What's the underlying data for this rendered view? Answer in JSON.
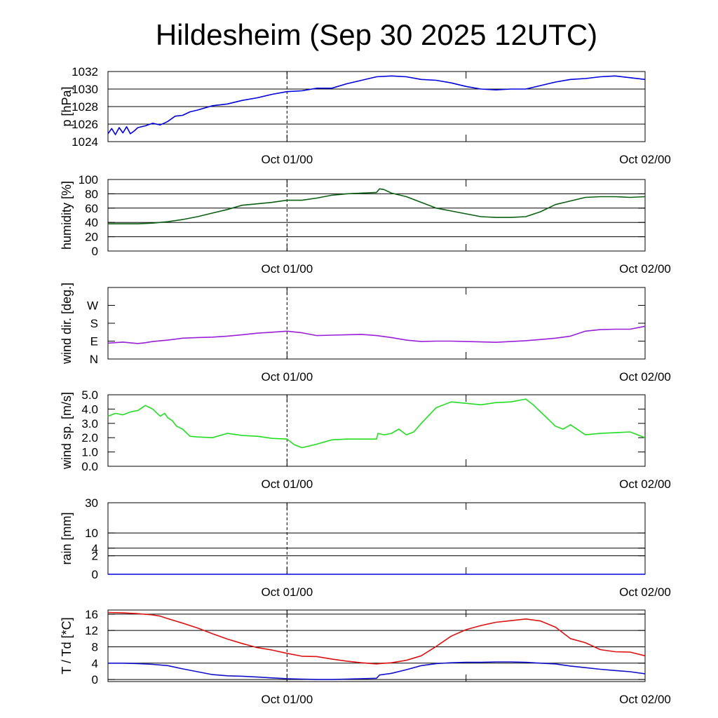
{
  "title": "Hildesheim (Sep 30 2025 12UTC)",
  "x_tick_labels": [
    "Oct 01/00",
    "Oct 02/00"
  ],
  "chart_data": [
    {
      "type": "line",
      "key": "pressure",
      "ylabel": "p [hPa]",
      "ylim": [
        1024,
        1032
      ],
      "yticks": [
        1024,
        1026,
        1028,
        1030,
        1032
      ],
      "yticklabels": [
        "1024",
        "1026",
        "1028",
        "1030",
        "1032"
      ],
      "xlim": [
        0,
        36
      ],
      "x_tick_hours": [
        12,
        24,
        36
      ],
      "grid": true,
      "color": "#0000dd",
      "series": [
        {
          "x": [
            0,
            0.25,
            0.5,
            0.75,
            1,
            1.25,
            1.5,
            1.75,
            2,
            2.5,
            3,
            3.5,
            4,
            4.5,
            5,
            5.5,
            6,
            7,
            8,
            9,
            10,
            11,
            12,
            13,
            14,
            15,
            16,
            17,
            18,
            19,
            20,
            21,
            22,
            23,
            24,
            25,
            26,
            27,
            28,
            29,
            30,
            31,
            32,
            33,
            34,
            35,
            36
          ],
          "values": [
            1024.9,
            1025.5,
            1024.8,
            1025.6,
            1025.0,
            1025.7,
            1024.9,
            1025.2,
            1025.6,
            1025.8,
            1026.1,
            1025.9,
            1026.3,
            1026.9,
            1027.0,
            1027.4,
            1027.6,
            1028.1,
            1028.3,
            1028.7,
            1029.0,
            1029.4,
            1029.7,
            1029.8,
            1030.1,
            1030.1,
            1030.6,
            1031.0,
            1031.4,
            1031.5,
            1031.4,
            1031.1,
            1031.0,
            1030.7,
            1030.3,
            1030.0,
            1029.9,
            1030.0,
            1030.0,
            1030.4,
            1030.8,
            1031.1,
            1031.2,
            1031.4,
            1031.5,
            1031.3,
            1031.1
          ]
        }
      ]
    },
    {
      "type": "line",
      "key": "humidity",
      "ylabel": "humidity [%]",
      "ylim": [
        0,
        100
      ],
      "yticks": [
        0,
        20,
        40,
        60,
        80,
        100
      ],
      "yticklabels": [
        "0",
        "20",
        "40",
        "60",
        "80",
        "100"
      ],
      "xlim": [
        0,
        36
      ],
      "x_tick_hours": [
        12,
        24,
        36
      ],
      "grid": true,
      "color": "#0a6010",
      "series": [
        {
          "x": [
            0,
            1,
            2,
            3,
            4,
            5,
            6,
            7,
            8,
            9,
            10,
            11,
            12,
            13,
            14,
            15,
            16,
            17,
            18,
            18.2,
            18.5,
            19,
            20,
            21,
            22,
            23,
            24,
            25,
            26,
            27,
            28,
            29,
            30,
            31,
            32,
            33,
            34,
            35,
            36
          ],
          "values": [
            38,
            38,
            38,
            39,
            41,
            44,
            48,
            53,
            58,
            64,
            66,
            68,
            71,
            71,
            74,
            78,
            80,
            81,
            82,
            87,
            86,
            81,
            76,
            68,
            60,
            56,
            52,
            48,
            47,
            47,
            48,
            55,
            65,
            70,
            75,
            76,
            76,
            75,
            76
          ]
        }
      ]
    },
    {
      "type": "line",
      "key": "wind_direction",
      "ylabel": "wind dir. [deg.]",
      "ylim": [
        0,
        360
      ],
      "yticks": [
        0,
        90,
        180,
        270
      ],
      "yticklabels": [
        "N",
        "E",
        "S",
        "W"
      ],
      "xlim": [
        0,
        36
      ],
      "x_tick_hours": [
        12,
        24,
        36
      ],
      "grid": false,
      "color": "#9a1fd8",
      "series": [
        {
          "x": [
            0,
            1,
            2,
            2.5,
            3,
            4,
            5,
            6,
            7,
            8,
            9,
            10,
            11,
            12,
            13,
            14,
            15,
            16,
            17,
            18,
            19,
            20,
            21,
            22,
            23,
            24,
            25,
            26,
            27,
            28,
            29,
            30,
            31,
            32,
            33,
            34,
            35,
            36
          ],
          "values": [
            80,
            85,
            78,
            82,
            88,
            95,
            105,
            108,
            110,
            115,
            122,
            130,
            135,
            140,
            132,
            118,
            120,
            122,
            124,
            118,
            108,
            95,
            88,
            90,
            90,
            88,
            86,
            84,
            88,
            92,
            98,
            105,
            115,
            140,
            148,
            150,
            150,
            165
          ]
        }
      ]
    },
    {
      "type": "line",
      "key": "wind_speed",
      "ylabel": "wind sp. [m/s]",
      "ylim": [
        0,
        5
      ],
      "yticks": [
        0,
        1,
        2,
        3,
        4,
        5
      ],
      "yticklabels": [
        "0.0",
        "1.0",
        "2.0",
        "3.0",
        "4.0",
        "5.0"
      ],
      "xlim": [
        0,
        36
      ],
      "x_tick_hours": [
        12,
        24,
        36
      ],
      "grid": false,
      "color": "#22dd22",
      "series": [
        {
          "x": [
            0,
            0.5,
            1,
            1.5,
            2,
            2.5,
            3,
            3.5,
            3.8,
            4,
            4.3,
            4.6,
            5,
            5.5,
            6,
            7,
            8,
            9,
            10,
            11,
            12,
            12.5,
            13,
            14,
            15,
            16,
            17,
            18,
            18.1,
            18.5,
            19,
            19.5,
            20,
            20.5,
            21,
            22,
            23,
            24,
            25,
            26,
            27,
            28,
            28.5,
            29,
            29.5,
            30,
            30.5,
            31,
            32,
            33,
            34,
            35,
            36
          ],
          "values": [
            3.5,
            3.7,
            3.6,
            3.8,
            3.9,
            4.25,
            4.0,
            3.5,
            3.7,
            3.4,
            3.2,
            2.8,
            2.6,
            2.1,
            2.05,
            2.0,
            2.3,
            2.15,
            2.1,
            1.95,
            1.9,
            1.5,
            1.3,
            1.55,
            1.85,
            1.9,
            1.9,
            1.9,
            2.3,
            2.2,
            2.3,
            2.6,
            2.2,
            2.4,
            3.0,
            4.1,
            4.5,
            4.4,
            4.3,
            4.45,
            4.5,
            4.7,
            4.3,
            3.8,
            3.3,
            2.8,
            2.6,
            2.9,
            2.2,
            2.3,
            2.35,
            2.4,
            2.0
          ]
        }
      ]
    },
    {
      "type": "line",
      "key": "rain",
      "ylabel": "rain [mm]",
      "ylim": [
        0,
        30
      ],
      "yticks": [
        0,
        2,
        4,
        10,
        30
      ],
      "yticklabels": [
        "0",
        "2",
        "4",
        "10",
        "30"
      ],
      "yscale": "sqrt",
      "xlim": [
        0,
        36
      ],
      "x_tick_hours": [
        12,
        24,
        36
      ],
      "grid": true,
      "color": "#0000dd",
      "series": [
        {
          "x": [
            0,
            36
          ],
          "values": [
            0,
            0
          ]
        }
      ]
    },
    {
      "type": "line",
      "key": "temperature",
      "ylabel": "T / Td [*C]",
      "ylim": [
        -0.5,
        17
      ],
      "yticks": [
        0,
        4,
        8,
        12,
        16
      ],
      "yticklabels": [
        "0",
        "4",
        "8",
        "12",
        "16"
      ],
      "xlim": [
        0,
        36
      ],
      "x_tick_hours": [
        12,
        24,
        36
      ],
      "grid": true,
      "series": [
        {
          "name": "T",
          "color": "#dd1111",
          "x": [
            0,
            1,
            2,
            3,
            3.5,
            4,
            5,
            6,
            7,
            8,
            9,
            10,
            11,
            12,
            13,
            14,
            15,
            16,
            17,
            18,
            18.2,
            19,
            20,
            21,
            22,
            23,
            24,
            25,
            26,
            27,
            28,
            29,
            30,
            31,
            32,
            33,
            34,
            35,
            36
          ],
          "values": [
            16.4,
            16.3,
            16.1,
            15.8,
            15.5,
            14.9,
            13.8,
            12.6,
            11.2,
            9.9,
            8.8,
            7.8,
            7.2,
            6.4,
            5.7,
            5.6,
            5.0,
            4.5,
            4.1,
            3.8,
            3.9,
            4.1,
            4.7,
            5.8,
            8.1,
            10.6,
            12.2,
            13.2,
            14.0,
            14.4,
            14.8,
            14.3,
            12.8,
            10.0,
            9.0,
            7.3,
            6.8,
            6.7,
            5.8
          ]
        },
        {
          "name": "Td",
          "color": "#1111cc",
          "x": [
            0,
            1,
            2,
            3,
            4,
            5,
            6,
            7,
            8,
            9,
            10,
            11,
            12,
            13,
            14,
            15,
            16,
            17,
            18,
            18.2,
            19,
            20,
            21,
            22,
            23,
            24,
            25,
            26,
            27,
            28,
            29,
            30,
            31,
            32,
            33,
            34,
            35,
            36
          ],
          "values": [
            4.0,
            4.0,
            3.9,
            3.7,
            3.4,
            2.6,
            1.9,
            1.2,
            0.9,
            0.8,
            0.6,
            0.4,
            0.2,
            0.1,
            0.0,
            0.0,
            0.1,
            0.2,
            0.3,
            1.1,
            1.5,
            2.4,
            3.4,
            3.9,
            4.1,
            4.2,
            4.2,
            4.3,
            4.3,
            4.2,
            4.0,
            3.8,
            3.3,
            2.9,
            2.5,
            2.2,
            1.9,
            1.4
          ]
        }
      ]
    }
  ]
}
